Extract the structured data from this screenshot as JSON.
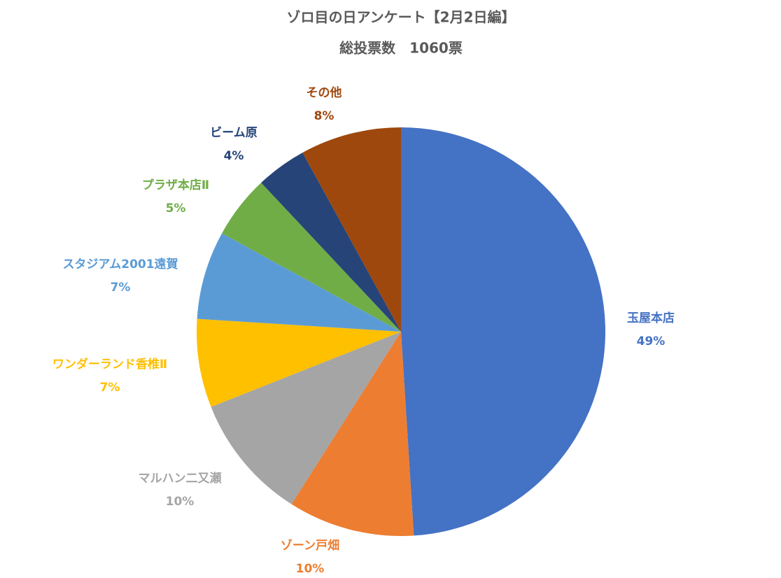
{
  "chart_data": {
    "type": "pie",
    "title": "ゾロ目の日アンケート【2月2日編】",
    "subtitle": "総投票数　1060票",
    "categories": [
      "玉屋本店",
      "ゾーン戸畑",
      "マルハン二又瀬",
      "ワンダーランド香椎Ⅱ",
      "スタジアム2001遠賀",
      "プラザ本店Ⅱ",
      "ビーム原",
      "その他"
    ],
    "values": [
      49,
      10,
      10,
      7,
      7,
      5,
      4,
      8
    ],
    "value_labels": [
      "49%",
      "10%",
      "10%",
      "7%",
      "7%",
      "5%",
      "4%",
      "8%"
    ],
    "colors": [
      "#4472c4",
      "#ed7d31",
      "#a5a5a5",
      "#ffc000",
      "#5b9bd5",
      "#70ad47",
      "#264478",
      "#9e480e"
    ]
  }
}
